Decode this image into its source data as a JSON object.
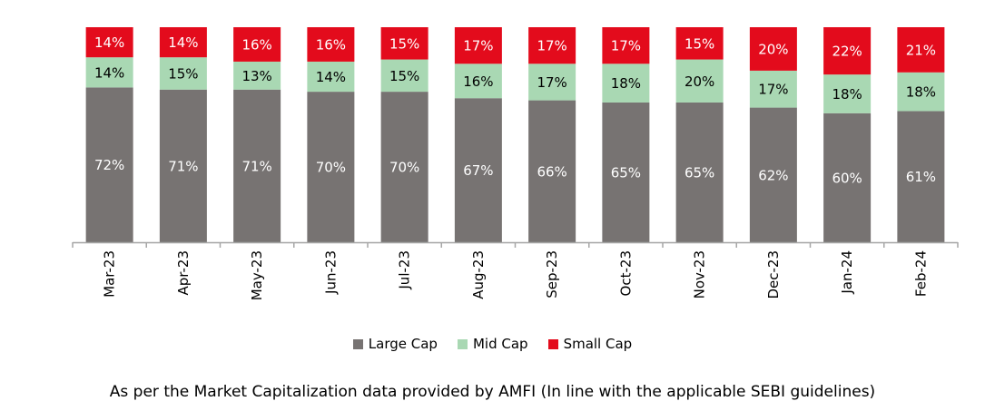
{
  "chart_data": {
    "type": "bar",
    "stacked": true,
    "categories": [
      "Mar-23",
      "Apr-23",
      "May-23",
      "Jun-23",
      "Jul-23",
      "Aug-23",
      "Sep-23",
      "Oct-23",
      "Nov-23",
      "Dec-23",
      "Jan-24",
      "Feb-24"
    ],
    "series": [
      {
        "name": "Large Cap",
        "color": "#777372",
        "label_color": "#ffffff",
        "values": [
          72,
          71,
          71,
          70,
          70,
          67,
          66,
          65,
          65,
          62,
          60,
          61
        ]
      },
      {
        "name": "Mid Cap",
        "color": "#a9d8b3",
        "label_color": "#000000",
        "values": [
          14,
          15,
          13,
          14,
          15,
          16,
          17,
          18,
          20,
          17,
          18,
          18
        ]
      },
      {
        "name": "Small Cap",
        "color": "#e30b1c",
        "label_color": "#ffffff",
        "values": [
          14,
          14,
          16,
          16,
          15,
          17,
          17,
          17,
          15,
          20,
          22,
          21
        ]
      }
    ],
    "value_suffix": "%",
    "title": "",
    "xlabel": "",
    "ylabel": "",
    "legend_position": "bottom",
    "grid": false
  },
  "footnote": "As per the Market Capitalization data provided by AMFI (In line with the applicable SEBI guidelines)"
}
